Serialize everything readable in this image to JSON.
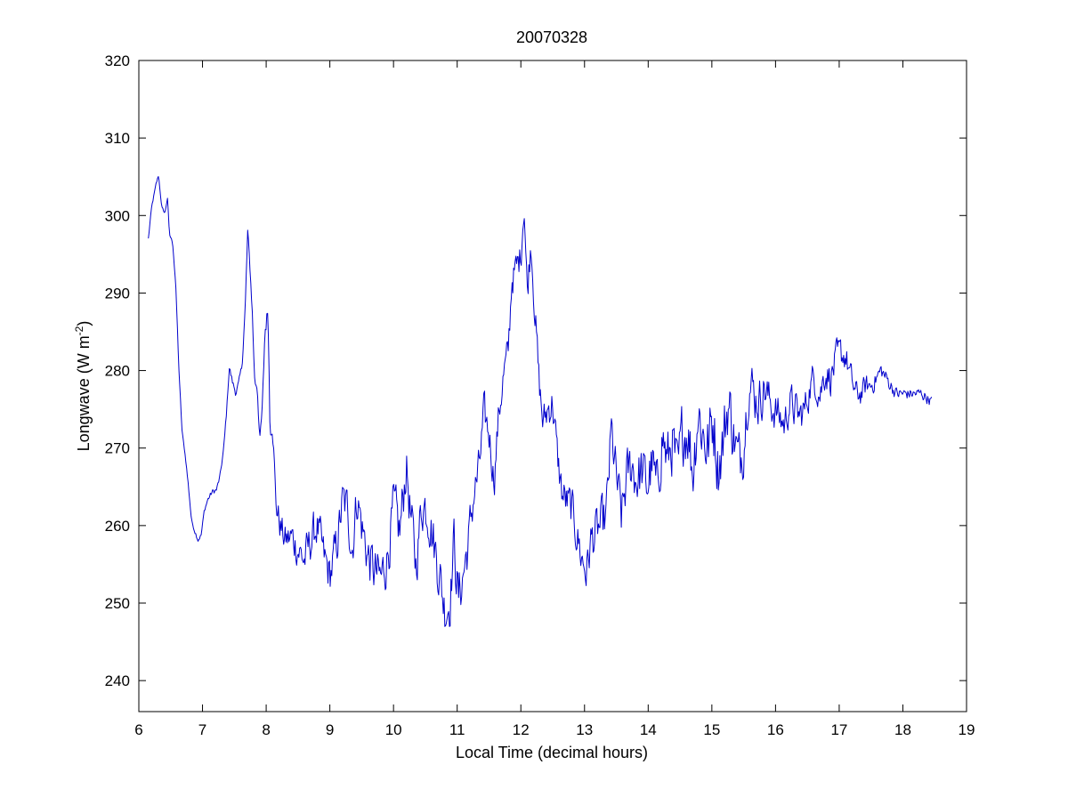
{
  "chart_data": {
    "type": "line",
    "title": "20070328",
    "xlabel": "Local Time (decimal hours)",
    "ylabel_text": "Longwave (W m",
    "ylabel_superscript": "-2",
    "ylabel_close": ")",
    "xlim": [
      6,
      19
    ],
    "ylim": [
      236,
      320
    ],
    "xticks": [
      6,
      7,
      8,
      9,
      10,
      11,
      12,
      13,
      14,
      15,
      16,
      17,
      18,
      19
    ],
    "yticks": [
      240,
      250,
      260,
      270,
      280,
      290,
      300,
      310,
      320
    ],
    "grid": false,
    "line_color": "#0000cc",
    "series": [
      {
        "anchors": [
          [
            6.15,
            297
          ],
          [
            6.2,
            301
          ],
          [
            6.27,
            304
          ],
          [
            6.31,
            305.2
          ],
          [
            6.36,
            301
          ],
          [
            6.41,
            300.3
          ],
          [
            6.45,
            302.3
          ],
          [
            6.48,
            297.5
          ],
          [
            6.53,
            296.6
          ],
          [
            6.58,
            291
          ],
          [
            6.63,
            280
          ],
          [
            6.68,
            272
          ],
          [
            6.73,
            269
          ],
          [
            6.78,
            265
          ],
          [
            6.83,
            260.5
          ],
          [
            6.88,
            259.3
          ],
          [
            6.93,
            258.2
          ],
          [
            6.98,
            258.8
          ],
          [
            7.03,
            262
          ],
          [
            7.08,
            263.3
          ],
          [
            7.15,
            264.3
          ],
          [
            7.22,
            264.6
          ],
          [
            7.28,
            266.5
          ],
          [
            7.34,
            270.5
          ],
          [
            7.38,
            275
          ],
          [
            7.42,
            280.5
          ],
          [
            7.47,
            278.5
          ],
          [
            7.52,
            277.2
          ],
          [
            7.57,
            278.3
          ],
          [
            7.62,
            280.5
          ],
          [
            7.67,
            288
          ],
          [
            7.71,
            297.9
          ],
          [
            7.74,
            294
          ],
          [
            7.78,
            288
          ],
          [
            7.82,
            278.5
          ],
          [
            7.86,
            278
          ],
          [
            7.9,
            271
          ],
          [
            7.94,
            275
          ],
          [
            7.98,
            285
          ],
          [
            8.03,
            288
          ],
          [
            8.06,
            272.8
          ],
          [
            8.1,
            274
          ],
          [
            8.15,
            263
          ],
          [
            8.22,
            260
          ],
          [
            8.3,
            258
          ],
          [
            8.4,
            258.5
          ],
          [
            8.5,
            257
          ],
          [
            8.6,
            255.5
          ],
          [
            8.7,
            258
          ],
          [
            8.8,
            260
          ],
          [
            8.9,
            256
          ],
          [
            9.0,
            253.5
          ],
          [
            9.1,
            257
          ],
          [
            9.2,
            263
          ],
          [
            9.28,
            262
          ],
          [
            9.35,
            257
          ],
          [
            9.43,
            264
          ],
          [
            9.5,
            260
          ],
          [
            9.6,
            256
          ],
          [
            9.7,
            254
          ],
          [
            9.8,
            253
          ],
          [
            9.9,
            256
          ],
          [
            10.0,
            262
          ],
          [
            10.1,
            259
          ],
          [
            10.2,
            268
          ],
          [
            10.28,
            260
          ],
          [
            10.35,
            255
          ],
          [
            10.45,
            263
          ],
          [
            10.55,
            262
          ],
          [
            10.63,
            258
          ],
          [
            10.72,
            254
          ],
          [
            10.8,
            249.5
          ],
          [
            10.88,
            250
          ],
          [
            10.95,
            258
          ],
          [
            11.02,
            250.5
          ],
          [
            11.1,
            254
          ],
          [
            11.18,
            258
          ],
          [
            11.26,
            264
          ],
          [
            11.34,
            267
          ],
          [
            11.42,
            274
          ],
          [
            11.5,
            272
          ],
          [
            11.58,
            266
          ],
          [
            11.65,
            274
          ],
          [
            11.72,
            279
          ],
          [
            11.8,
            282
          ],
          [
            11.86,
            292
          ],
          [
            11.93,
            293
          ],
          [
            12.0,
            295
          ],
          [
            12.05,
            302
          ],
          [
            12.1,
            290
          ],
          [
            12.16,
            297
          ],
          [
            12.22,
            288
          ],
          [
            12.28,
            279
          ],
          [
            12.35,
            273
          ],
          [
            12.42,
            275
          ],
          [
            12.5,
            276
          ],
          [
            12.57,
            269
          ],
          [
            12.65,
            264
          ],
          [
            12.72,
            263
          ],
          [
            12.8,
            262
          ],
          [
            12.88,
            259
          ],
          [
            12.95,
            256
          ],
          [
            13.03,
            254
          ],
          [
            13.1,
            258
          ],
          [
            13.18,
            259
          ],
          [
            13.26,
            260
          ],
          [
            13.34,
            261
          ],
          [
            13.42,
            272
          ],
          [
            13.5,
            266
          ],
          [
            13.58,
            261
          ],
          [
            13.66,
            266
          ],
          [
            13.74,
            268
          ],
          [
            13.82,
            266
          ],
          [
            13.9,
            267
          ],
          [
            13.98,
            265
          ],
          [
            14.06,
            268
          ],
          [
            14.14,
            264
          ],
          [
            14.22,
            272
          ],
          [
            14.3,
            268
          ],
          [
            14.38,
            271
          ],
          [
            14.46,
            266
          ],
          [
            14.54,
            272
          ],
          [
            14.62,
            273
          ],
          [
            14.7,
            267
          ],
          [
            14.78,
            275
          ],
          [
            14.86,
            272
          ],
          [
            14.94,
            270
          ],
          [
            15.02,
            274
          ],
          [
            15.1,
            268
          ],
          [
            15.18,
            271
          ],
          [
            15.26,
            276
          ],
          [
            15.34,
            272
          ],
          [
            15.42,
            268
          ],
          [
            15.5,
            271
          ],
          [
            15.58,
            279
          ],
          [
            15.66,
            277
          ],
          [
            15.74,
            276
          ],
          [
            15.82,
            278
          ],
          [
            15.9,
            276
          ],
          [
            15.98,
            275
          ],
          [
            16.06,
            274
          ],
          [
            16.14,
            273
          ],
          [
            16.22,
            276
          ],
          [
            16.3,
            275
          ],
          [
            16.38,
            274
          ],
          [
            16.46,
            275
          ],
          [
            16.54,
            278
          ],
          [
            16.62,
            279
          ],
          [
            16.7,
            277
          ],
          [
            16.78,
            280
          ],
          [
            16.86,
            279
          ],
          [
            16.94,
            281
          ],
          [
            17.02,
            282
          ],
          [
            17.1,
            282
          ],
          [
            17.18,
            279
          ],
          [
            17.26,
            277
          ],
          [
            17.34,
            277
          ],
          [
            17.42,
            278
          ],
          [
            17.5,
            278
          ],
          [
            17.58,
            279
          ],
          [
            17.66,
            280
          ],
          [
            17.74,
            279
          ],
          [
            17.82,
            278
          ],
          [
            17.9,
            277
          ],
          [
            17.98,
            277
          ],
          [
            18.06,
            277
          ],
          [
            18.14,
            277
          ],
          [
            18.22,
            277
          ],
          [
            18.3,
            277
          ],
          [
            18.38,
            276.5
          ],
          [
            18.46,
            276
          ]
        ],
        "noise_amplitude": [
          [
            6.0,
            0.3
          ],
          [
            6.6,
            0.3
          ],
          [
            7.9,
            1.0
          ],
          [
            8.1,
            3.0
          ],
          [
            8.5,
            4.0
          ],
          [
            10.0,
            5.5
          ],
          [
            11.0,
            5.5
          ],
          [
            11.5,
            4.0
          ],
          [
            12.0,
            3.5
          ],
          [
            12.3,
            4.0
          ],
          [
            13.0,
            4.5
          ],
          [
            14.0,
            6.0
          ],
          [
            15.0,
            7.5
          ],
          [
            15.5,
            6.0
          ],
          [
            16.0,
            4.0
          ],
          [
            17.0,
            3.5
          ],
          [
            17.5,
            2.0
          ],
          [
            18.0,
            1.2
          ],
          [
            18.5,
            1.2
          ]
        ],
        "step": 0.012
      }
    ]
  }
}
